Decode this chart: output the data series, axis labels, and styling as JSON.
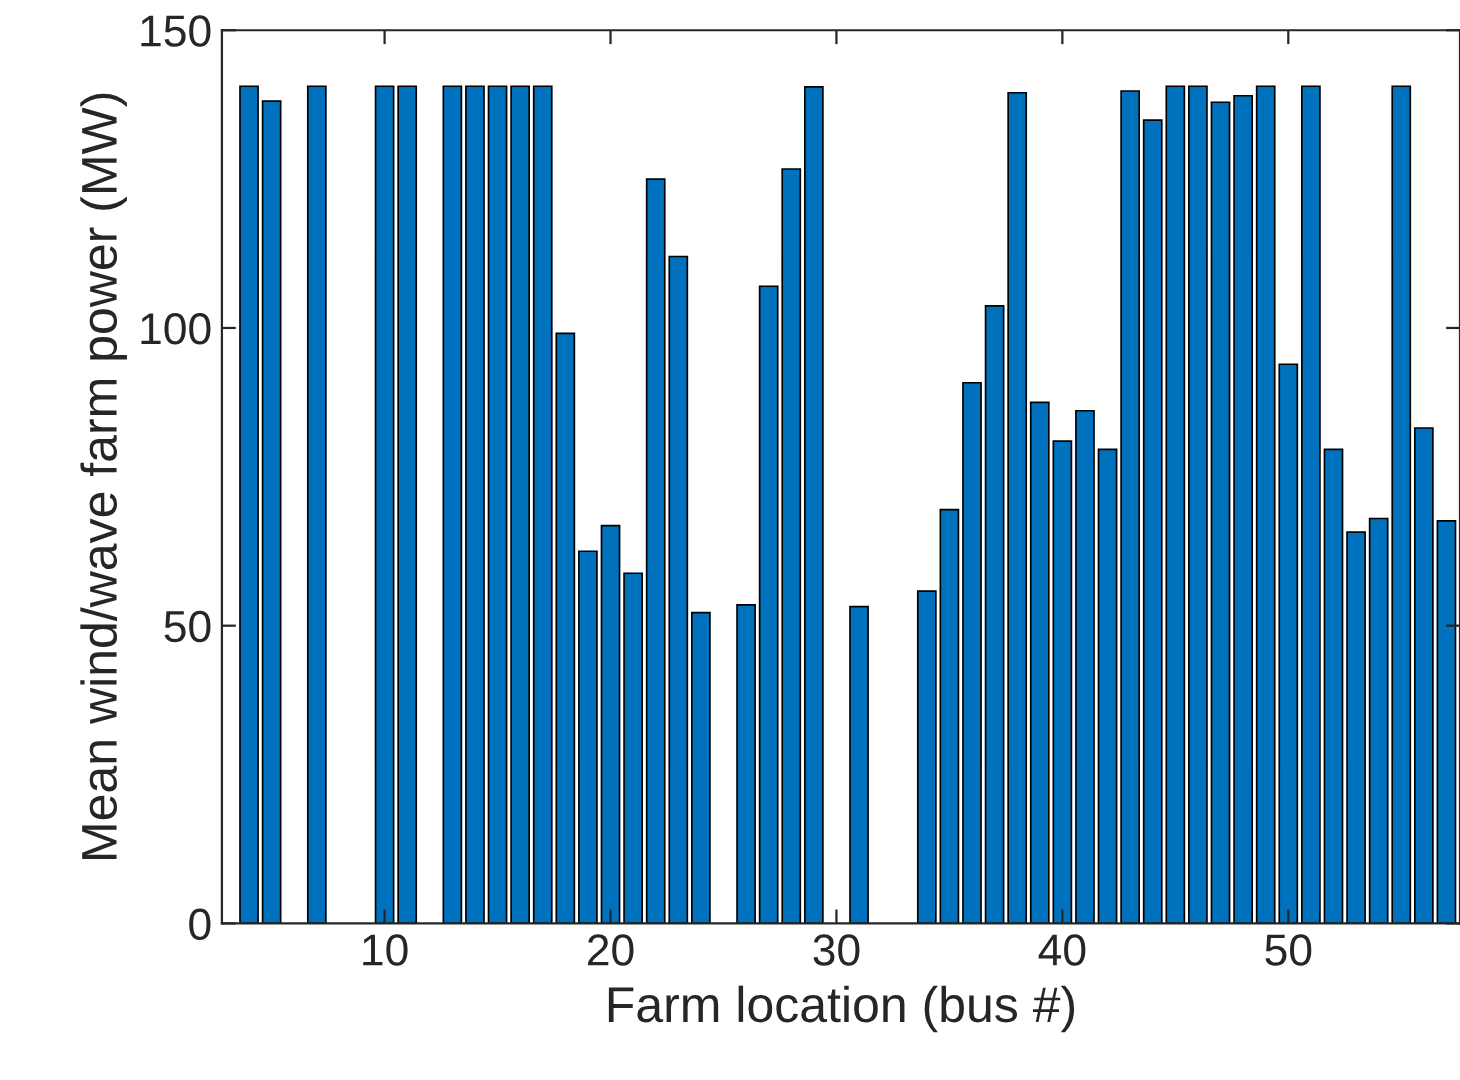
{
  "chart_data": {
    "type": "bar",
    "xlabel": "Farm location (bus #)",
    "ylabel": "Mean wind/wave farm power (MW)",
    "x": [
      4,
      5,
      7,
      10,
      11,
      13,
      14,
      15,
      16,
      17,
      18,
      19,
      20,
      21,
      22,
      23,
      24,
      26,
      27,
      28,
      29,
      31,
      34,
      35,
      36,
      37,
      38,
      39,
      40,
      41,
      42,
      43,
      44,
      45,
      46,
      47,
      48,
      49,
      50,
      51,
      52,
      53,
      54,
      55,
      56,
      57
    ],
    "values": [
      140.6,
      138.1,
      140.6,
      140.6,
      140.6,
      140.6,
      140.6,
      140.6,
      140.6,
      140.6,
      99.1,
      62.5,
      66.8,
      58.8,
      125.0,
      112.0,
      52.2,
      53.5,
      107.0,
      126.7,
      140.5,
      53.2,
      55.8,
      69.5,
      90.8,
      103.7,
      139.5,
      87.5,
      81.0,
      86.1,
      79.6,
      139.8,
      134.9,
      140.6,
      140.6,
      137.9,
      139.0,
      140.6,
      93.9,
      140.6,
      79.6,
      65.7,
      68.0,
      140.6,
      83.2,
      67.6
    ],
    "color": "#0072bd",
    "xlim": [
      2.8,
      57.6
    ],
    "ylim": [
      0,
      150
    ],
    "xticks": [
      10,
      20,
      30,
      40,
      50
    ],
    "yticks": [
      0,
      50,
      100,
      150
    ],
    "grid": false,
    "legend": false
  }
}
